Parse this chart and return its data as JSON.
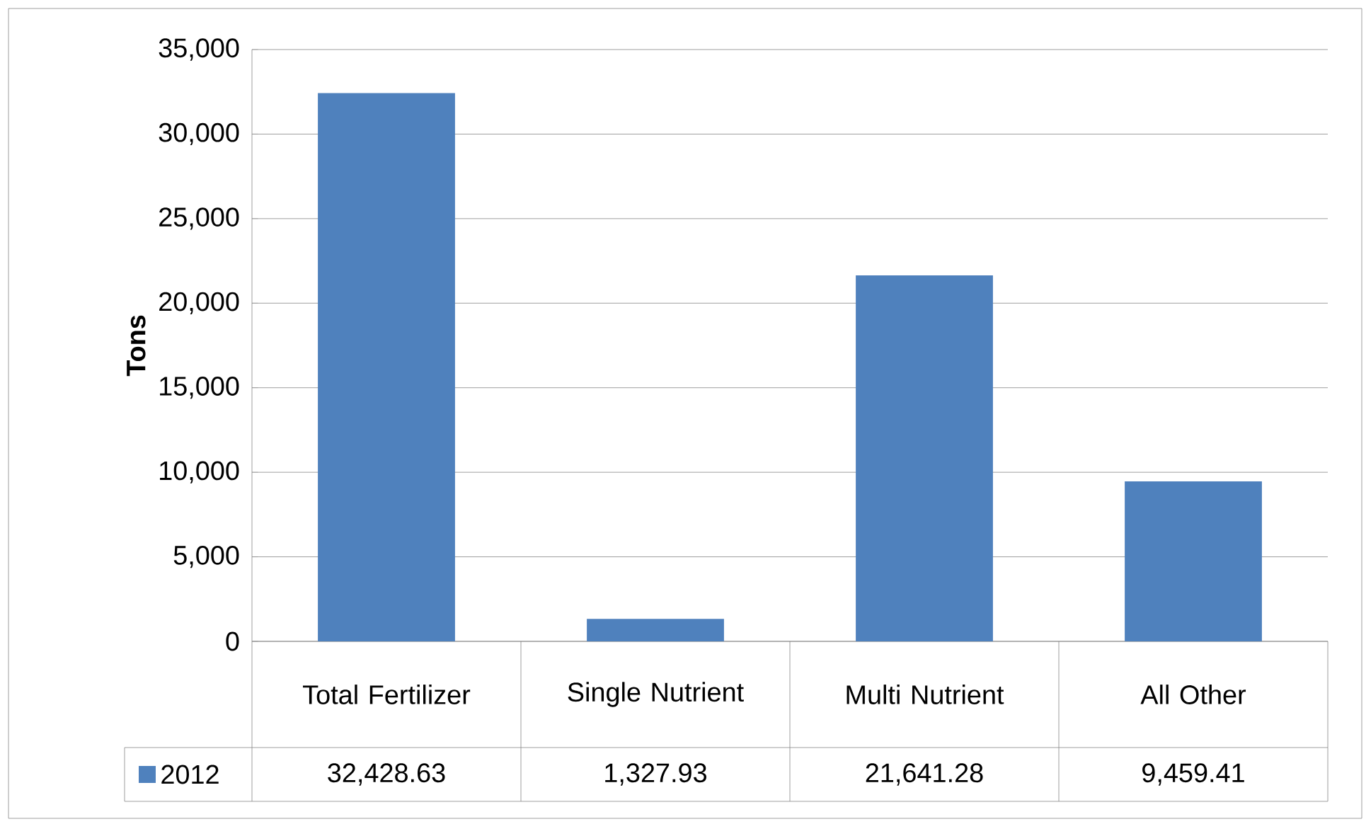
{
  "chart_data": {
    "type": "bar",
    "ylabel": "Tons",
    "categories": [
      "Total Fertilizer",
      "Single Nutrient",
      "Multi Nutrient",
      "All Other"
    ],
    "series": [
      {
        "name": "2012",
        "color": "#4f81bd",
        "values": [
          32428.63,
          1327.93,
          21641.28,
          9459.41
        ]
      }
    ],
    "value_labels": [
      "32,428.63",
      "1,327.93",
      "21,641.28",
      "9,459.41"
    ],
    "ylim": [
      0,
      35000
    ],
    "yticks": [
      {
        "value": 0,
        "label": "0"
      },
      {
        "value": 5000,
        "label": "5,000"
      },
      {
        "value": 10000,
        "label": "10,000"
      },
      {
        "value": 15000,
        "label": "15,000"
      },
      {
        "value": 20000,
        "label": "20,000"
      },
      {
        "value": 25000,
        "label": "25,000"
      },
      {
        "value": 30000,
        "label": "30,000"
      },
      {
        "value": 35000,
        "label": "35,000"
      }
    ],
    "grid": "y",
    "legend": "bottom"
  }
}
